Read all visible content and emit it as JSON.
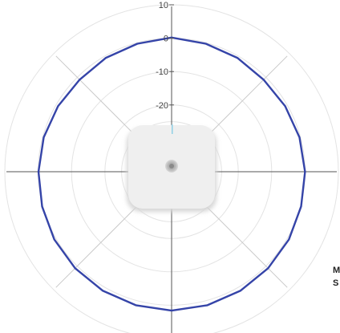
{
  "chart_data": {
    "type": "polar-line",
    "title": "",
    "r_ticks": [
      10,
      0,
      -10,
      -20
    ],
    "r_range": [
      -40,
      10
    ],
    "grid": true,
    "series": [
      {
        "color": "#3544a8",
        "angles_deg": [
          0,
          15,
          30,
          45,
          60,
          75,
          90,
          105,
          120,
          135,
          150,
          165,
          180,
          195,
          210,
          225,
          240,
          255,
          270,
          285,
          300,
          315,
          330,
          345
        ],
        "values": [
          0.2,
          -0.3,
          -0.6,
          -1.0,
          -0.7,
          -0.3,
          0.0,
          0.2,
          0.6,
          0.9,
          1.2,
          1.4,
          1.6,
          1.4,
          1.2,
          0.9,
          0.6,
          0.2,
          -0.1,
          -0.3,
          -0.7,
          -1.0,
          -0.6,
          -0.3
        ]
      }
    ]
  },
  "side_text": [
    "M",
    "S"
  ],
  "device": {
    "icon": "access-point-device-icon"
  }
}
